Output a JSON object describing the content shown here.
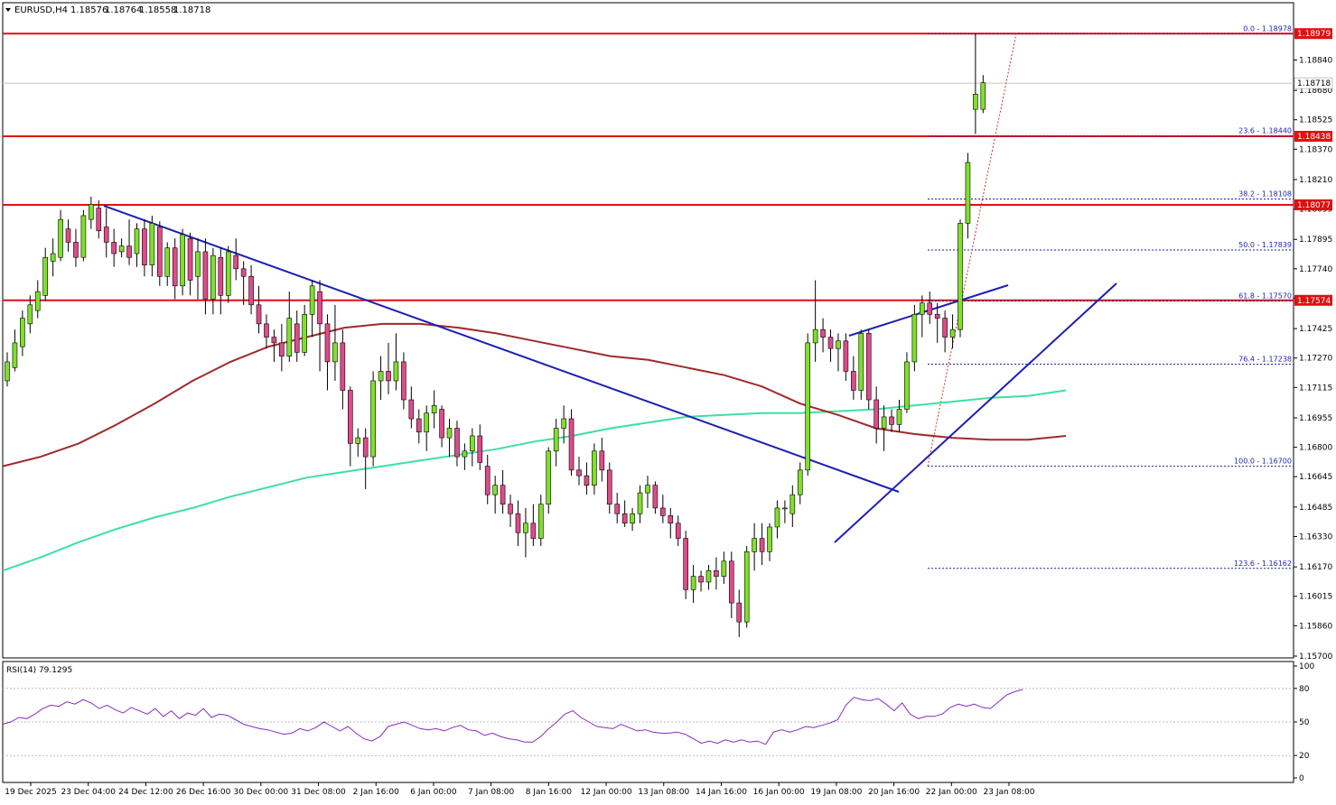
{
  "header": {
    "symbol": "EURUSD,H4",
    "open": "1.18576",
    "high": "1.18764",
    "low": "1.18558",
    "close": "1.18718"
  },
  "rsi_label": "RSI(14) 79.1295",
  "chart_data": {
    "type": "candlestick",
    "symbol": "EURUSD",
    "timeframe": "H4",
    "ylim": [
      1.157,
      1.19
    ],
    "price_ticks": [
      "1.18840",
      "1.18680",
      "1.18525",
      "1.18370",
      "1.18210",
      "1.18055",
      "1.17895",
      "1.17740",
      "1.17585",
      "1.17425",
      "1.17270",
      "1.17115",
      "1.16955",
      "1.16800",
      "1.16645",
      "1.16485",
      "1.16330",
      "1.16170",
      "1.16015",
      "1.15860",
      "1.15700"
    ],
    "time_labels": [
      "19 Dec 2025",
      "23 Dec 04:00",
      "24 Dec 12:00",
      "26 Dec 16:00",
      "30 Dec 00:00",
      "31 Dec 08:00",
      "2 Jan 16:00",
      "6 Jan 00:00",
      "7 Jan 08:00",
      "8 Jan 16:00",
      "12 Jan 00:00",
      "13 Jan 08:00",
      "14 Jan 16:00",
      "16 Jan 00:00",
      "19 Jan 08:00",
      "20 Jan 16:00",
      "22 Jan 00:00",
      "23 Jan 08:00"
    ],
    "current_price": "1.18718",
    "resistance_levels": [
      {
        "price": 1.18979,
        "label": "1.18979"
      },
      {
        "price": 1.18438,
        "label": "1.18438"
      },
      {
        "price": 1.18077,
        "label": "1.18077"
      },
      {
        "price": 1.17574,
        "label": "1.17574"
      }
    ],
    "fibonacci": [
      {
        "price": 1.18978,
        "label": "0.0 - 1.18978"
      },
      {
        "price": 1.1844,
        "label": "23.6 - 1.18440"
      },
      {
        "price": 1.18108,
        "label": "38.2 - 1.18108"
      },
      {
        "price": 1.17839,
        "label": "50.0 - 1.17839"
      },
      {
        "price": 1.1757,
        "label": "61.8 - 1.17570"
      },
      {
        "price": 1.17238,
        "label": "76.4 - 1.17238"
      },
      {
        "price": 1.167,
        "label": "100.0 - 1.16700"
      },
      {
        "price": 1.16162,
        "label": "123.6 - 1.16162"
      }
    ],
    "candles": [
      [
        1.1715,
        1.173,
        1.1712,
        1.1725
      ],
      [
        1.1722,
        1.1742,
        1.172,
        1.1735
      ],
      [
        1.1733,
        1.1752,
        1.1728,
        1.1748
      ],
      [
        1.1745,
        1.176,
        1.174,
        1.1755
      ],
      [
        1.1752,
        1.1768,
        1.1748,
        1.1762
      ],
      [
        1.176,
        1.1785,
        1.1757,
        1.178
      ],
      [
        1.1778,
        1.179,
        1.177,
        1.1782
      ],
      [
        1.178,
        1.1805,
        1.1778,
        1.18
      ],
      [
        1.1795,
        1.18,
        1.1783,
        1.1788
      ],
      [
        1.1788,
        1.1795,
        1.1775,
        1.178
      ],
      [
        1.178,
        1.1805,
        1.1778,
        1.1802
      ],
      [
        1.18,
        1.1812,
        1.1795,
        1.1808
      ],
      [
        1.1806,
        1.181,
        1.179,
        1.1794
      ],
      [
        1.1796,
        1.1806,
        1.178,
        1.1788
      ],
      [
        1.1788,
        1.1795,
        1.1775,
        1.1782
      ],
      [
        1.1783,
        1.179,
        1.178,
        1.1786
      ],
      [
        1.1786,
        1.18,
        1.1776,
        1.178
      ],
      [
        1.1782,
        1.1798,
        1.1775,
        1.1795
      ],
      [
        1.1795,
        1.18,
        1.177,
        1.1776
      ],
      [
        1.1776,
        1.1802,
        1.177,
        1.1798
      ],
      [
        1.1796,
        1.1799,
        1.1765,
        1.177
      ],
      [
        1.177,
        1.1788,
        1.1765,
        1.1785
      ],
      [
        1.1785,
        1.179,
        1.1758,
        1.1765
      ],
      [
        1.1765,
        1.1795,
        1.176,
        1.1792
      ],
      [
        1.179,
        1.1793,
        1.176,
        1.1768
      ],
      [
        1.177,
        1.179,
        1.1758,
        1.1783
      ],
      [
        1.1783,
        1.179,
        1.175,
        1.1758
      ],
      [
        1.1758,
        1.1785,
        1.175,
        1.1781
      ],
      [
        1.178,
        1.1785,
        1.175,
        1.176
      ],
      [
        1.176,
        1.1786,
        1.1756,
        1.1783
      ],
      [
        1.1781,
        1.179,
        1.1768,
        1.1774
      ],
      [
        1.1774,
        1.1778,
        1.1755,
        1.177
      ],
      [
        1.177,
        1.1776,
        1.175,
        1.1755
      ],
      [
        1.1755,
        1.1765,
        1.174,
        1.1745
      ],
      [
        1.1745,
        1.175,
        1.1732,
        1.1738
      ],
      [
        1.1738,
        1.1742,
        1.1725,
        1.1735
      ],
      [
        1.1735,
        1.1745,
        1.172,
        1.1728
      ],
      [
        1.1728,
        1.1762,
        1.1725,
        1.1748
      ],
      [
        1.1745,
        1.1752,
        1.1725,
        1.173
      ],
      [
        1.173,
        1.1755,
        1.1728,
        1.175
      ],
      [
        1.175,
        1.1768,
        1.1738,
        1.1765
      ],
      [
        1.1762,
        1.1768,
        1.172,
        1.1745
      ],
      [
        1.1745,
        1.175,
        1.171,
        1.1725
      ],
      [
        1.1725,
        1.1755,
        1.1715,
        1.1735
      ],
      [
        1.1735,
        1.1742,
        1.17,
        1.171
      ],
      [
        1.171,
        1.1712,
        1.167,
        1.1682
      ],
      [
        1.1682,
        1.169,
        1.1675,
        1.1685
      ],
      [
        1.1685,
        1.169,
        1.1658,
        1.1675
      ],
      [
        1.1675,
        1.172,
        1.167,
        1.1715
      ],
      [
        1.1715,
        1.1728,
        1.1705,
        1.172
      ],
      [
        1.172,
        1.1735,
        1.1708,
        1.1715
      ],
      [
        1.1715,
        1.174,
        1.171,
        1.1725
      ],
      [
        1.1725,
        1.173,
        1.17,
        1.1705
      ],
      [
        1.1705,
        1.1712,
        1.169,
        1.1695
      ],
      [
        1.1695,
        1.17,
        1.1682,
        1.1688
      ],
      [
        1.1688,
        1.1702,
        1.1678,
        1.1698
      ],
      [
        1.1698,
        1.171,
        1.169,
        1.1702
      ],
      [
        1.17,
        1.1702,
        1.168,
        1.1685
      ],
      [
        1.1685,
        1.1695,
        1.1675,
        1.169
      ],
      [
        1.169,
        1.1694,
        1.167,
        1.1675
      ],
      [
        1.1675,
        1.1682,
        1.1668,
        1.1678
      ],
      [
        1.1678,
        1.169,
        1.167,
        1.1686
      ],
      [
        1.1686,
        1.1692,
        1.1668,
        1.1672
      ],
      [
        1.167,
        1.1676,
        1.165,
        1.1655
      ],
      [
        1.1655,
        1.1665,
        1.1645,
        1.166
      ],
      [
        1.166,
        1.1668,
        1.1645,
        1.165
      ],
      [
        1.165,
        1.1655,
        1.1638,
        1.1645
      ],
      [
        1.1645,
        1.1652,
        1.1628,
        1.1635
      ],
      [
        1.1635,
        1.1648,
        1.1622,
        1.164
      ],
      [
        1.164,
        1.165,
        1.1628,
        1.1632
      ],
      [
        1.1632,
        1.1655,
        1.1628,
        1.165
      ],
      [
        1.165,
        1.168,
        1.1645,
        1.1678
      ],
      [
        1.1678,
        1.1695,
        1.167,
        1.169
      ],
      [
        1.169,
        1.1702,
        1.1682,
        1.1695
      ],
      [
        1.1695,
        1.17,
        1.1665,
        1.1668
      ],
      [
        1.1668,
        1.1675,
        1.166,
        1.1665
      ],
      [
        1.1665,
        1.1672,
        1.1655,
        1.166
      ],
      [
        1.166,
        1.1682,
        1.1655,
        1.1678
      ],
      [
        1.1678,
        1.1685,
        1.1662,
        1.1668
      ],
      [
        1.1668,
        1.1672,
        1.1645,
        1.165
      ],
      [
        1.165,
        1.1656,
        1.164,
        1.1645
      ],
      [
        1.1645,
        1.1652,
        1.1638,
        1.164
      ],
      [
        1.164,
        1.1648,
        1.1636,
        1.1645
      ],
      [
        1.1645,
        1.166,
        1.164,
        1.1656
      ],
      [
        1.1656,
        1.1665,
        1.1648,
        1.166
      ],
      [
        1.166,
        1.1662,
        1.1645,
        1.1648
      ],
      [
        1.1648,
        1.1655,
        1.164,
        1.1644
      ],
      [
        1.1644,
        1.1648,
        1.1632,
        1.164
      ],
      [
        1.164,
        1.1644,
        1.1628,
        1.1632
      ],
      [
        1.1632,
        1.1636,
        1.16,
        1.1605
      ],
      [
        1.1605,
        1.1618,
        1.1598,
        1.1612
      ],
      [
        1.1612,
        1.1615,
        1.1604,
        1.1609
      ],
      [
        1.1609,
        1.1618,
        1.1605,
        1.1615
      ],
      [
        1.1615,
        1.1622,
        1.1605,
        1.1612
      ],
      [
        1.1612,
        1.1625,
        1.1608,
        1.162
      ],
      [
        1.162,
        1.1625,
        1.159,
        1.1598
      ],
      [
        1.1598,
        1.1605,
        1.158,
        1.1588
      ],
      [
        1.1588,
        1.1628,
        1.1585,
        1.1625
      ],
      [
        1.1625,
        1.164,
        1.1615,
        1.1632
      ],
      [
        1.1632,
        1.164,
        1.1618,
        1.1625
      ],
      [
        1.1625,
        1.164,
        1.162,
        1.1638
      ],
      [
        1.1638,
        1.1652,
        1.1632,
        1.1648
      ],
      [
        1.1648,
        1.1652,
        1.164,
        1.1648
      ],
      [
        1.1645,
        1.166,
        1.1638,
        1.1655
      ],
      [
        1.1655,
        1.1672,
        1.165,
        1.1668
      ],
      [
        1.1668,
        1.174,
        1.1665,
        1.1735
      ],
      [
        1.1735,
        1.1768,
        1.1725,
        1.1742
      ],
      [
        1.1742,
        1.1748,
        1.173,
        1.1738
      ],
      [
        1.1738,
        1.1742,
        1.1725,
        1.1732
      ],
      [
        1.1732,
        1.174,
        1.172,
        1.1736
      ],
      [
        1.1736,
        1.174,
        1.1715,
        1.172
      ],
      [
        1.172,
        1.1728,
        1.1705,
        1.171
      ],
      [
        1.171,
        1.1742,
        1.1705,
        1.174
      ],
      [
        1.174,
        1.1742,
        1.17,
        1.1705
      ],
      [
        1.1705,
        1.1712,
        1.1682,
        1.169
      ],
      [
        1.169,
        1.1702,
        1.1678,
        1.1696
      ],
      [
        1.1696,
        1.17,
        1.1688,
        1.1692
      ],
      [
        1.1692,
        1.1705,
        1.1688,
        1.17
      ],
      [
        1.17,
        1.173,
        1.1698,
        1.1725
      ],
      [
        1.1725,
        1.1755,
        1.172,
        1.175
      ],
      [
        1.175,
        1.176,
        1.1738,
        1.1756
      ],
      [
        1.1756,
        1.1762,
        1.1745,
        1.175
      ],
      [
        1.175,
        1.1756,
        1.1735,
        1.1748
      ],
      [
        1.1748,
        1.1752,
        1.173,
        1.1738
      ],
      [
        1.1738,
        1.175,
        1.1732,
        1.1742
      ],
      [
        1.1742,
        1.18,
        1.1738,
        1.1798
      ],
      [
        1.1798,
        1.1835,
        1.179,
        1.183
      ],
      [
        1.1858,
        1.1898,
        1.1845,
        1.1866
      ],
      [
        1.1858,
        1.1876,
        1.1856,
        1.1872
      ]
    ],
    "ma_red": [
      1.167,
      1.1675,
      1.1682,
      1.1692,
      1.1703,
      1.1715,
      1.1725,
      1.1733,
      1.1738,
      1.1743,
      1.1745,
      1.1745,
      1.1743,
      1.174,
      1.1736,
      1.1732,
      1.1728,
      1.1726,
      1.1722,
      1.1718,
      1.1712,
      1.1703,
      1.1697,
      1.169,
      1.1687,
      1.1685,
      1.1684,
      1.1684,
      1.1686
    ],
    "ma_green": [
      1.1615,
      1.1622,
      1.163,
      1.1637,
      1.1643,
      1.1648,
      1.1654,
      1.1659,
      1.1664,
      1.1667,
      1.167,
      1.1673,
      1.1676,
      1.1679,
      1.1683,
      1.1686,
      1.169,
      1.1693,
      1.1696,
      1.1697,
      1.1698,
      1.1698,
      1.1699,
      1.17,
      1.1702,
      1.1704,
      1.1706,
      1.1707,
      1.171
    ],
    "rsi": {
      "period": 14,
      "value": 79.1295,
      "levels": [
        80,
        50,
        20
      ],
      "ylim": [
        0,
        100
      ],
      "ticks": [
        "100",
        "80",
        "50",
        "20",
        "0"
      ],
      "values": [
        48,
        50,
        54,
        53,
        57,
        62,
        65,
        64,
        68,
        66,
        70,
        67,
        62,
        65,
        61,
        58,
        63,
        60,
        57,
        62,
        55,
        60,
        53,
        58,
        56,
        62,
        54,
        57,
        56,
        52,
        48,
        46,
        44,
        43,
        41,
        39,
        40,
        44,
        42,
        45,
        50,
        46,
        42,
        46,
        40,
        35,
        33,
        37,
        46,
        48,
        50,
        47,
        44,
        43,
        44,
        42,
        45,
        47,
        43,
        42,
        38,
        40,
        37,
        35,
        34,
        32,
        32,
        37,
        44,
        50,
        57,
        60,
        54,
        50,
        46,
        45,
        44,
        48,
        45,
        42,
        43,
        41,
        40,
        40,
        41,
        39,
        35,
        31,
        33,
        31,
        34,
        32,
        34,
        32,
        33,
        30,
        41,
        43,
        41,
        43,
        46,
        45,
        47,
        49,
        52,
        65,
        72,
        70,
        69,
        71,
        66,
        60,
        67,
        57,
        53,
        55,
        55,
        57,
        63,
        66,
        64,
        66,
        63,
        62,
        68,
        74,
        77,
        79
      ]
    }
  }
}
